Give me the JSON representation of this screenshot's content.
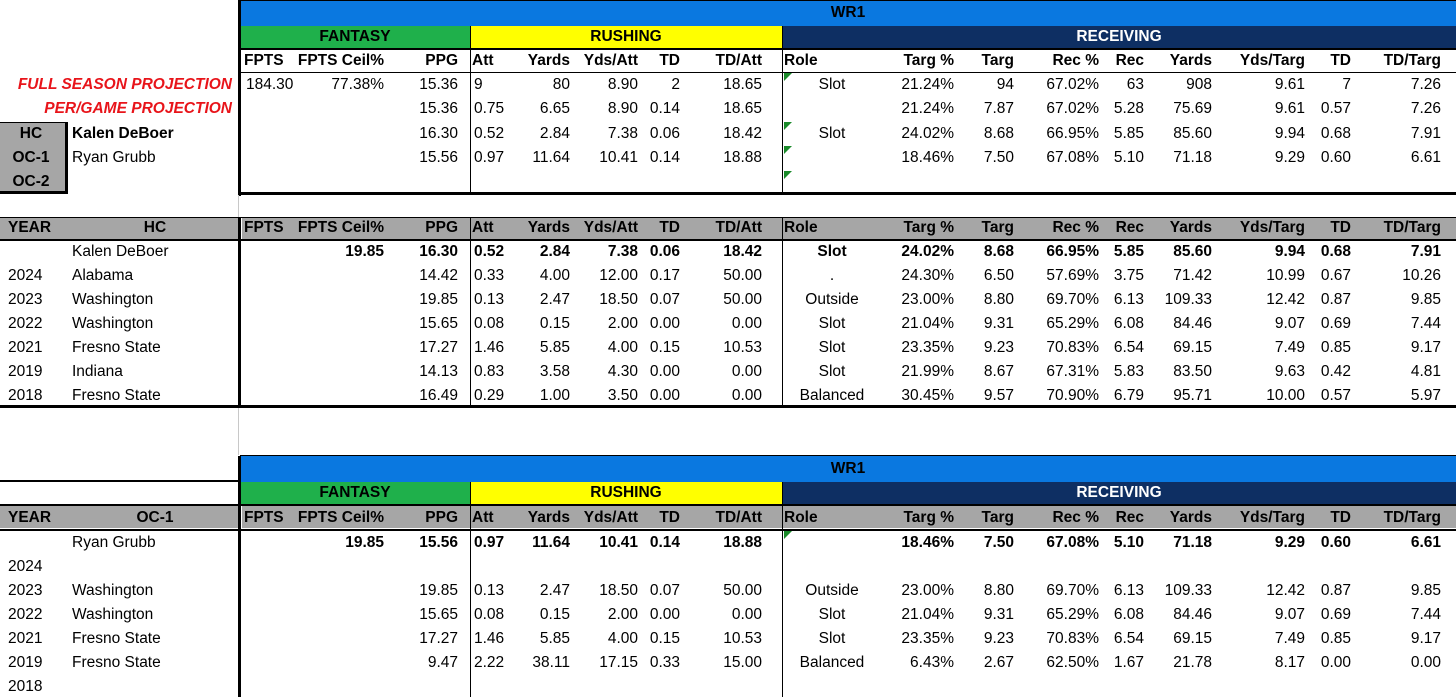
{
  "colors": {
    "wr_band": "#0a78e0",
    "fantasy": "#1fb04b",
    "rushing": "#ffff00",
    "receiving": "#0e2f63",
    "gray": "#a6a6a6",
    "projection_red": "#e8141a"
  },
  "top": {
    "band": "WR1",
    "groups": {
      "fantasy": "FANTASY",
      "rushing": "RUSHING",
      "receiving": "RECEIVING"
    },
    "headers": [
      "FPTS",
      "FPTS Ceil%",
      "PPG",
      "Att",
      "Yards",
      "Yds/Att",
      "TD",
      "TD/Att",
      "Role",
      "Targ %",
      "Targ",
      "Rec %",
      "Rec",
      "Yards",
      "Yds/Targ",
      "TD",
      "TD/Targ"
    ],
    "full_season_label": "FULL SEASON PROJECTION",
    "per_game_label": "PER/GAME PROJECTION",
    "coach_labels": [
      "HC",
      "OC-1",
      "OC-2"
    ],
    "coach_names": [
      "Kalen DeBoer",
      "Ryan Grubb",
      ""
    ],
    "rows": [
      [
        "184.30",
        "77.38%",
        "15.36",
        "9",
        "80",
        "8.90",
        "2",
        "18.65",
        "Slot",
        "21.24%",
        "94",
        "67.02%",
        "63",
        "908",
        "9.61",
        "7",
        "7.26"
      ],
      [
        "",
        "",
        "15.36",
        "0.75",
        "6.65",
        "8.90",
        "0.14",
        "18.65",
        "",
        "21.24%",
        "7.87",
        "67.02%",
        "5.28",
        "75.69",
        "9.61",
        "0.57",
        "7.26"
      ],
      [
        "",
        "",
        "16.30",
        "0.52",
        "2.84",
        "7.38",
        "0.06",
        "18.42",
        "Slot",
        "24.02%",
        "8.68",
        "66.95%",
        "5.85",
        "85.60",
        "9.94",
        "0.68",
        "7.91"
      ],
      [
        "",
        "",
        "15.56",
        "0.97",
        "11.64",
        "10.41",
        "0.14",
        "18.88",
        "",
        "18.46%",
        "7.50",
        "67.08%",
        "5.10",
        "71.18",
        "9.29",
        "0.60",
        "6.61"
      ]
    ]
  },
  "hc_table": {
    "year_label": "YEAR",
    "col_label": "HC",
    "headers": [
      "FPTS",
      "FPTS Ceil%",
      "PPG",
      "Att",
      "Yards",
      "Yds/Att",
      "TD",
      "TD/Att",
      "Role",
      "Targ %",
      "Targ",
      "Rec %",
      "Rec",
      "Yards",
      "Yds/Targ",
      "TD",
      "TD/Targ"
    ],
    "summary": {
      "name": "Kalen DeBoer",
      "vals": [
        "",
        "19.85",
        "16.30",
        "0.52",
        "2.84",
        "7.38",
        "0.06",
        "18.42",
        "Slot",
        "24.02%",
        "8.68",
        "66.95%",
        "5.85",
        "85.60",
        "9.94",
        "0.68",
        "7.91"
      ]
    },
    "rows": [
      {
        "year": "2024",
        "team": "Alabama",
        "vals": [
          "",
          "",
          "14.42",
          "0.33",
          "4.00",
          "12.00",
          "0.17",
          "50.00",
          ".",
          "24.30%",
          "6.50",
          "57.69%",
          "3.75",
          "71.42",
          "10.99",
          "0.67",
          "10.26"
        ]
      },
      {
        "year": "2023",
        "team": "Washington",
        "vals": [
          "",
          "",
          "19.85",
          "0.13",
          "2.47",
          "18.50",
          "0.07",
          "50.00",
          "Outside",
          "23.00%",
          "8.80",
          "69.70%",
          "6.13",
          "109.33",
          "12.42",
          "0.87",
          "9.85"
        ]
      },
      {
        "year": "2022",
        "team": "Washington",
        "vals": [
          "",
          "",
          "15.65",
          "0.08",
          "0.15",
          "2.00",
          "0.00",
          "0.00",
          "Slot",
          "21.04%",
          "9.31",
          "65.29%",
          "6.08",
          "84.46",
          "9.07",
          "0.69",
          "7.44"
        ]
      },
      {
        "year": "2021",
        "team": "Fresno State",
        "vals": [
          "",
          "",
          "17.27",
          "1.46",
          "5.85",
          "4.00",
          "0.15",
          "10.53",
          "Slot",
          "23.35%",
          "9.23",
          "70.83%",
          "6.54",
          "69.15",
          "7.49",
          "0.85",
          "9.17"
        ]
      },
      {
        "year": "2019",
        "team": "Indiana",
        "vals": [
          "",
          "",
          "14.13",
          "0.83",
          "3.58",
          "4.30",
          "0.00",
          "0.00",
          "Slot",
          "21.99%",
          "8.67",
          "67.31%",
          "5.83",
          "83.50",
          "9.63",
          "0.42",
          "4.81"
        ]
      },
      {
        "year": "2018",
        "team": "Fresno State",
        "vals": [
          "",
          "",
          "16.49",
          "0.29",
          "1.00",
          "3.50",
          "0.00",
          "0.00",
          "Balanced",
          "30.45%",
          "9.57",
          "70.90%",
          "6.79",
          "95.71",
          "10.00",
          "0.57",
          "5.97"
        ]
      }
    ]
  },
  "oc_table": {
    "band": "WR1",
    "groups": {
      "fantasy": "FANTASY",
      "rushing": "RUSHING",
      "receiving": "RECEIVING"
    },
    "year_label": "YEAR",
    "col_label": "OC-1",
    "headers": [
      "FPTS",
      "FPTS Ceil%",
      "PPG",
      "Att",
      "Yards",
      "Yds/Att",
      "TD",
      "TD/Att",
      "Role",
      "Targ %",
      "Targ",
      "Rec %",
      "Rec",
      "Yards",
      "Yds/Targ",
      "TD",
      "TD/Targ"
    ],
    "summary": {
      "name": "Ryan Grubb",
      "vals": [
        "",
        "19.85",
        "15.56",
        "0.97",
        "11.64",
        "10.41",
        "0.14",
        "18.88",
        "",
        "18.46%",
        "7.50",
        "67.08%",
        "5.10",
        "71.18",
        "9.29",
        "0.60",
        "6.61"
      ]
    },
    "rows": [
      {
        "year": "2024",
        "team": "",
        "vals": [
          "",
          "",
          "",
          "",
          "",
          "",
          "",
          "",
          "",
          "",
          "",
          "",
          "",
          "",
          "",
          "",
          ""
        ]
      },
      {
        "year": "2023",
        "team": "Washington",
        "vals": [
          "",
          "",
          "19.85",
          "0.13",
          "2.47",
          "18.50",
          "0.07",
          "50.00",
          "Outside",
          "23.00%",
          "8.80",
          "69.70%",
          "6.13",
          "109.33",
          "12.42",
          "0.87",
          "9.85"
        ]
      },
      {
        "year": "2022",
        "team": "Washington",
        "vals": [
          "",
          "",
          "15.65",
          "0.08",
          "0.15",
          "2.00",
          "0.00",
          "0.00",
          "Slot",
          "21.04%",
          "9.31",
          "65.29%",
          "6.08",
          "84.46",
          "9.07",
          "0.69",
          "7.44"
        ]
      },
      {
        "year": "2021",
        "team": "Fresno State",
        "vals": [
          "",
          "",
          "17.27",
          "1.46",
          "5.85",
          "4.00",
          "0.15",
          "10.53",
          "Slot",
          "23.35%",
          "9.23",
          "70.83%",
          "6.54",
          "69.15",
          "7.49",
          "0.85",
          "9.17"
        ]
      },
      {
        "year": "2019",
        "team": "Fresno State",
        "vals": [
          "",
          "",
          "9.47",
          "2.22",
          "38.11",
          "17.15",
          "0.33",
          "15.00",
          "Balanced",
          "6.43%",
          "2.67",
          "62.50%",
          "1.67",
          "21.78",
          "8.17",
          "0.00",
          "0.00"
        ]
      },
      {
        "year": "2018",
        "team": "",
        "vals": [
          "",
          "",
          "",
          "",
          "",
          "",
          "",
          "",
          "",
          "",
          "",
          "",
          "",
          "",
          "",
          "",
          ""
        ]
      }
    ]
  }
}
